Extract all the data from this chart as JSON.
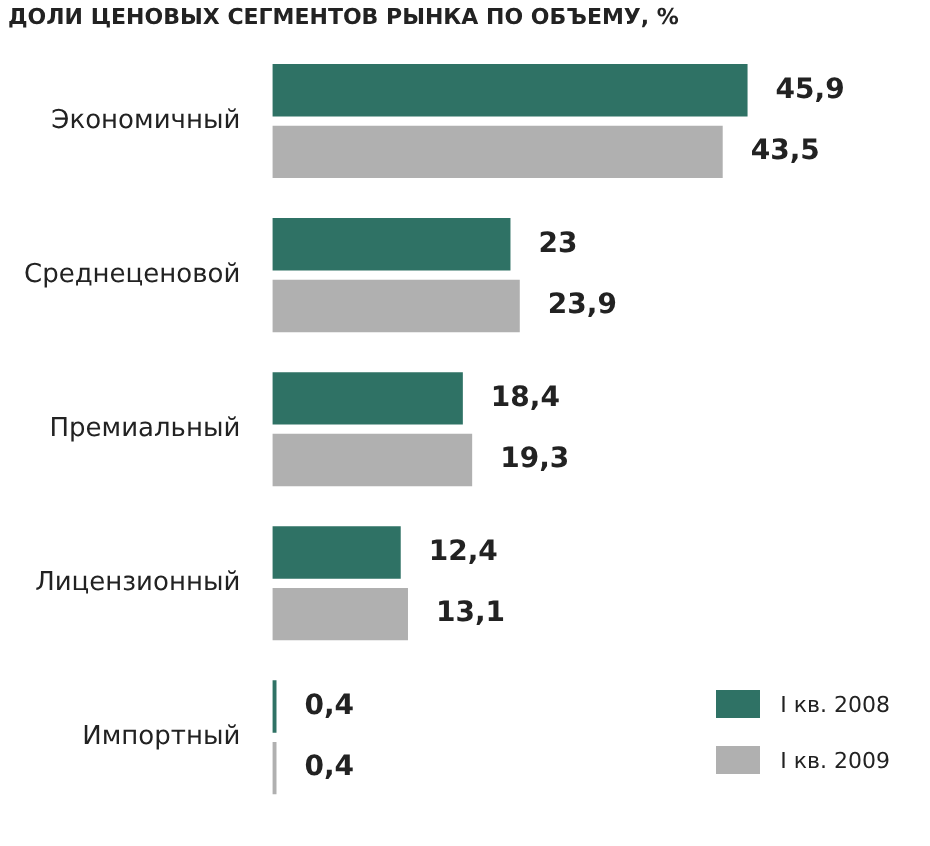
{
  "chart_data": {
    "type": "bar",
    "orientation": "horizontal",
    "title": "ДОЛИ ЦЕНОВЫХ СЕГМЕНТОВ РЫНКА ПО ОБЪЕМУ, %",
    "categories": [
      "Экономичный",
      "Среднеценовой",
      "Премиальный",
      "Лицензионный",
      "Импортный"
    ],
    "series": [
      {
        "name": "I кв. 2008",
        "color": "#2f7265",
        "values": [
          45.9,
          23,
          18.4,
          12.4,
          0.4
        ],
        "value_labels": [
          "45,9",
          "23",
          "18,4",
          "12,4",
          "0,4"
        ]
      },
      {
        "name": "I кв. 2009",
        "color": "#b0b0b0",
        "values": [
          43.5,
          23.9,
          19.3,
          13.1,
          0.4
        ],
        "value_labels": [
          "43,5",
          "23,9",
          "19,3",
          "13,1",
          "0,4"
        ]
      }
    ],
    "legend": "bottom right"
  }
}
